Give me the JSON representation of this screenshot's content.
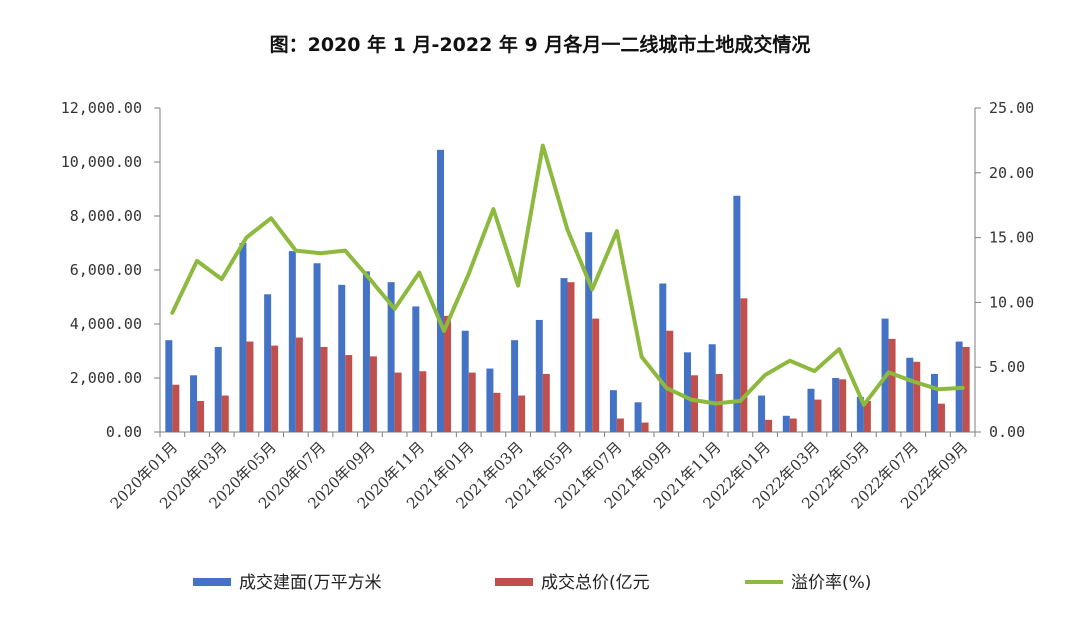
{
  "chart_data": {
    "type": "bar+line",
    "title": "图：2020 年 1 月-2022 年 9 月各月一二线城市土地成交情况",
    "categories": [
      "2020年01月",
      "2020年02月",
      "2020年03月",
      "2020年04月",
      "2020年05月",
      "2020年06月",
      "2020年07月",
      "2020年08月",
      "2020年09月",
      "2020年10月",
      "2020年11月",
      "2020年12月",
      "2021年01月",
      "2021年02月",
      "2021年03月",
      "2021年04月",
      "2021年05月",
      "2021年06月",
      "2021年07月",
      "2021年08月",
      "2021年09月",
      "2021年10月",
      "2021年11月",
      "2021年12月",
      "2022年01月",
      "2022年02月",
      "2022年03月",
      "2022年04月",
      "2022年05月",
      "2022年06月",
      "2022年07月",
      "2022年08月",
      "2022年09月"
    ],
    "x_tick_labels": [
      "2020年01月",
      "2020年03月",
      "2020年05月",
      "2020年07月",
      "2020年09月",
      "2020年11月",
      "2021年01月",
      "2021年03月",
      "2021年05月",
      "2021年07月",
      "2021年09月",
      "2021年11月",
      "2022年01月",
      "2022年03月",
      "2022年05月",
      "2022年07月",
      "2022年09月"
    ],
    "series": [
      {
        "name": "成交建面(万平方米",
        "kind": "bar",
        "axis": "left",
        "color": "#4472C4",
        "values": [
          3400,
          2100,
          3150,
          7000,
          5100,
          6700,
          6250,
          5450,
          5950,
          5550,
          4650,
          10450,
          3750,
          2350,
          3400,
          4150,
          5700,
          7400,
          1550,
          1100,
          5500,
          2950,
          3250,
          8750,
          1350,
          600,
          1600,
          2000,
          1300,
          4200,
          2750,
          2150,
          3350
        ]
      },
      {
        "name": "成交总价(亿元",
        "kind": "bar",
        "axis": "left",
        "color": "#C0504D",
        "values": [
          1750,
          1150,
          1350,
          3350,
          3200,
          3500,
          3150,
          2850,
          2800,
          2200,
          2250,
          4300,
          2200,
          1450,
          1350,
          2150,
          5550,
          4200,
          500,
          350,
          3750,
          2100,
          2150,
          4950,
          450,
          500,
          1200,
          1950,
          1150,
          3450,
          2600,
          1050,
          3150
        ]
      },
      {
        "name": "溢价率(%)",
        "kind": "line",
        "axis": "right",
        "color": "#8DB93E",
        "values": [
          9.2,
          13.2,
          11.8,
          15.0,
          16.5,
          14.0,
          13.8,
          14.0,
          11.8,
          9.5,
          12.3,
          7.8,
          12.2,
          17.2,
          11.3,
          22.1,
          15.6,
          11.0,
          15.5,
          5.8,
          3.4,
          2.5,
          2.2,
          2.4,
          4.4,
          5.5,
          4.7,
          6.4,
          2.1,
          4.6,
          3.9,
          3.3,
          3.4
        ]
      }
    ],
    "y_left": {
      "min": 0,
      "max": 12000,
      "ticks": [
        "0.00",
        "2,000.00",
        "4,000.00",
        "6,000.00",
        "8,000.00",
        "10,000.00",
        "12,000.00"
      ]
    },
    "y_right": {
      "min": 0,
      "max": 25,
      "ticks": [
        "0.00",
        "5.00",
        "10.00",
        "15.00",
        "20.00",
        "25.00"
      ]
    },
    "legend": {
      "position": "bottom",
      "items": [
        "成交建面(万平方米",
        "成交总价(亿元",
        "溢价率(%)"
      ]
    },
    "grid": false
  }
}
